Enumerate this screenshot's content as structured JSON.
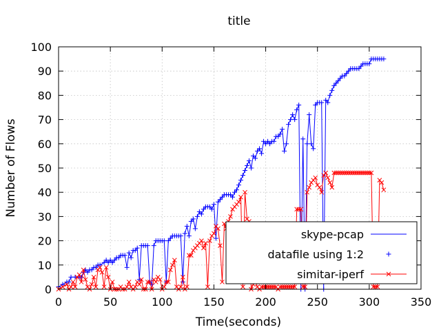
{
  "chart_data": {
    "type": "line",
    "title": "title",
    "xlabel": "Time(seconds)",
    "ylabel": "Number of Flows",
    "xlim": [
      0,
      350
    ],
    "ylim": [
      0,
      100
    ],
    "xticks": [
      0,
      50,
      100,
      150,
      200,
      250,
      300,
      350
    ],
    "yticks": [
      0,
      10,
      20,
      30,
      40,
      50,
      60,
      70,
      80,
      90,
      100
    ],
    "grid": true,
    "legend_position": "bottom-right",
    "series": [
      {
        "name": "skype-pcap",
        "color": "#0000ff",
        "marker": "+",
        "legend_style": "line",
        "x": [
          0,
          4,
          8,
          10,
          12,
          16,
          20,
          22,
          24,
          26,
          28,
          30,
          32,
          34,
          36,
          38,
          40,
          44,
          46,
          48,
          50,
          52,
          54,
          56,
          58,
          60,
          62,
          64,
          66,
          68,
          70,
          72,
          74,
          76,
          78,
          80,
          82,
          84,
          86,
          88,
          90,
          92,
          94,
          96,
          98,
          100,
          102,
          104,
          106,
          108,
          110,
          112,
          114,
          116,
          118,
          120,
          122,
          124,
          126,
          128,
          130,
          132,
          134,
          136,
          138,
          140,
          142,
          144,
          146,
          148,
          150,
          152,
          154,
          156,
          158,
          160,
          162,
          164,
          166,
          168,
          170,
          172,
          174,
          176,
          178,
          180,
          182,
          184,
          186,
          188,
          190,
          192,
          194,
          196,
          198,
          200,
          202,
          204,
          206,
          208,
          210,
          212,
          214,
          216,
          218,
          220,
          222,
          224,
          226,
          228,
          230,
          232,
          234,
          236,
          238,
          240,
          242,
          244,
          246,
          248,
          250,
          252,
          254,
          256,
          258,
          260,
          262,
          264,
          266,
          268,
          270,
          272,
          274,
          276,
          278,
          280,
          282,
          284,
          286,
          288,
          290,
          292,
          294,
          296,
          298,
          300,
          302,
          304,
          306,
          308,
          310,
          312,
          314
        ],
        "y": [
          1,
          2,
          3,
          3,
          5,
          5,
          5,
          5,
          7,
          8,
          7,
          8,
          8,
          9,
          9,
          10,
          10,
          11,
          12,
          11,
          12,
          11,
          12,
          13,
          13,
          14,
          14,
          14,
          9,
          15,
          13,
          16,
          16,
          17,
          4,
          18,
          18,
          18,
          18,
          3,
          2,
          18,
          20,
          20,
          20,
          20,
          20,
          3,
          20,
          21,
          22,
          22,
          22,
          22,
          22,
          3,
          23,
          26,
          22,
          28,
          29,
          25,
          30,
          32,
          31,
          33,
          34,
          34,
          34,
          33,
          35,
          21,
          36,
          37,
          38,
          39,
          39,
          39,
          39,
          38,
          40,
          41,
          43,
          45,
          47,
          49,
          51,
          53,
          50,
          55,
          54,
          57,
          58,
          56,
          61,
          60,
          61,
          60,
          61,
          61,
          63,
          63,
          64,
          66,
          57,
          60,
          68,
          70,
          72,
          70,
          74,
          76,
          0,
          62,
          0,
          60,
          72,
          60,
          58,
          76,
          77,
          77,
          77,
          0,
          78,
          77,
          80,
          82,
          84,
          85,
          86,
          87,
          88,
          88,
          89,
          90,
          91,
          91,
          91,
          91,
          91,
          92,
          93,
          93,
          93,
          93,
          95,
          95,
          95,
          95,
          95,
          95,
          95
        ]
      },
      {
        "name": "simitar-iperf",
        "color": "#ff0000",
        "marker": "x",
        "legend_style": "line-marker",
        "x": [
          0,
          4,
          8,
          10,
          12,
          14,
          16,
          18,
          20,
          22,
          24,
          26,
          28,
          30,
          32,
          34,
          36,
          38,
          40,
          42,
          44,
          46,
          48,
          50,
          52,
          54,
          56,
          58,
          60,
          62,
          64,
          66,
          68,
          70,
          72,
          74,
          76,
          78,
          80,
          82,
          84,
          86,
          88,
          90,
          92,
          94,
          96,
          98,
          100,
          102,
          104,
          106,
          108,
          110,
          112,
          114,
          116,
          118,
          120,
          122,
          124,
          126,
          128,
          130,
          132,
          134,
          136,
          138,
          140,
          142,
          144,
          146,
          148,
          150,
          152,
          154,
          156,
          158,
          160,
          162,
          164,
          166,
          168,
          170,
          172,
          174,
          176,
          178,
          180,
          182,
          184,
          186,
          188,
          190,
          192,
          194,
          196,
          198,
          200,
          202,
          204,
          206,
          208,
          210,
          212,
          214,
          216,
          218,
          220,
          222,
          224,
          226,
          228,
          230,
          232,
          234,
          236,
          238,
          240,
          242,
          244,
          246,
          248,
          250,
          252,
          254,
          256,
          258,
          260,
          262,
          264,
          266,
          268,
          270,
          272,
          274,
          276,
          278,
          280,
          282,
          284,
          286,
          288,
          290,
          292,
          294,
          296,
          298,
          300,
          302,
          304,
          306,
          308,
          310,
          312,
          314
        ],
        "y": [
          0,
          1,
          2,
          0,
          1,
          3,
          1,
          5,
          6,
          3,
          8,
          4,
          1,
          0,
          2,
          5,
          1,
          8,
          9,
          7,
          1,
          9,
          5,
          0,
          3,
          0,
          0,
          0,
          1,
          0,
          0,
          1,
          3,
          1,
          0,
          1,
          3,
          2,
          4,
          0,
          0,
          3,
          3,
          0,
          4,
          3,
          5,
          4,
          0,
          1,
          3,
          3,
          8,
          10,
          12,
          1,
          0,
          1,
          5,
          0,
          1,
          14,
          14,
          16,
          17,
          18,
          19,
          20,
          17,
          19,
          1,
          20,
          22,
          23,
          26,
          25,
          18,
          3,
          27,
          25,
          28,
          30,
          33,
          34,
          35,
          36,
          38,
          1,
          40,
          29,
          28,
          0,
          2,
          4,
          1,
          0,
          1,
          1,
          1,
          1,
          1,
          1,
          1,
          1,
          0,
          1,
          1,
          1,
          1,
          1,
          1,
          1,
          1,
          33,
          33,
          33,
          1,
          1,
          40,
          42,
          44,
          45,
          46,
          43,
          42,
          40,
          47,
          48,
          46,
          44,
          42,
          48,
          48,
          48,
          48,
          48,
          48,
          48,
          48,
          48,
          48,
          48,
          48,
          48,
          48,
          48,
          48,
          48,
          48,
          48,
          1,
          1,
          1,
          45,
          44,
          41
        ]
      }
    ],
    "legend": [
      {
        "label": "skype-pcap",
        "style": "line",
        "color": "#0000ff"
      },
      {
        "label": "datafile using 1:2",
        "style": "marker-plus",
        "color": "#0000ff"
      },
      {
        "label": "simitar-iperf",
        "style": "line-marker-x",
        "color": "#ff0000"
      }
    ]
  }
}
